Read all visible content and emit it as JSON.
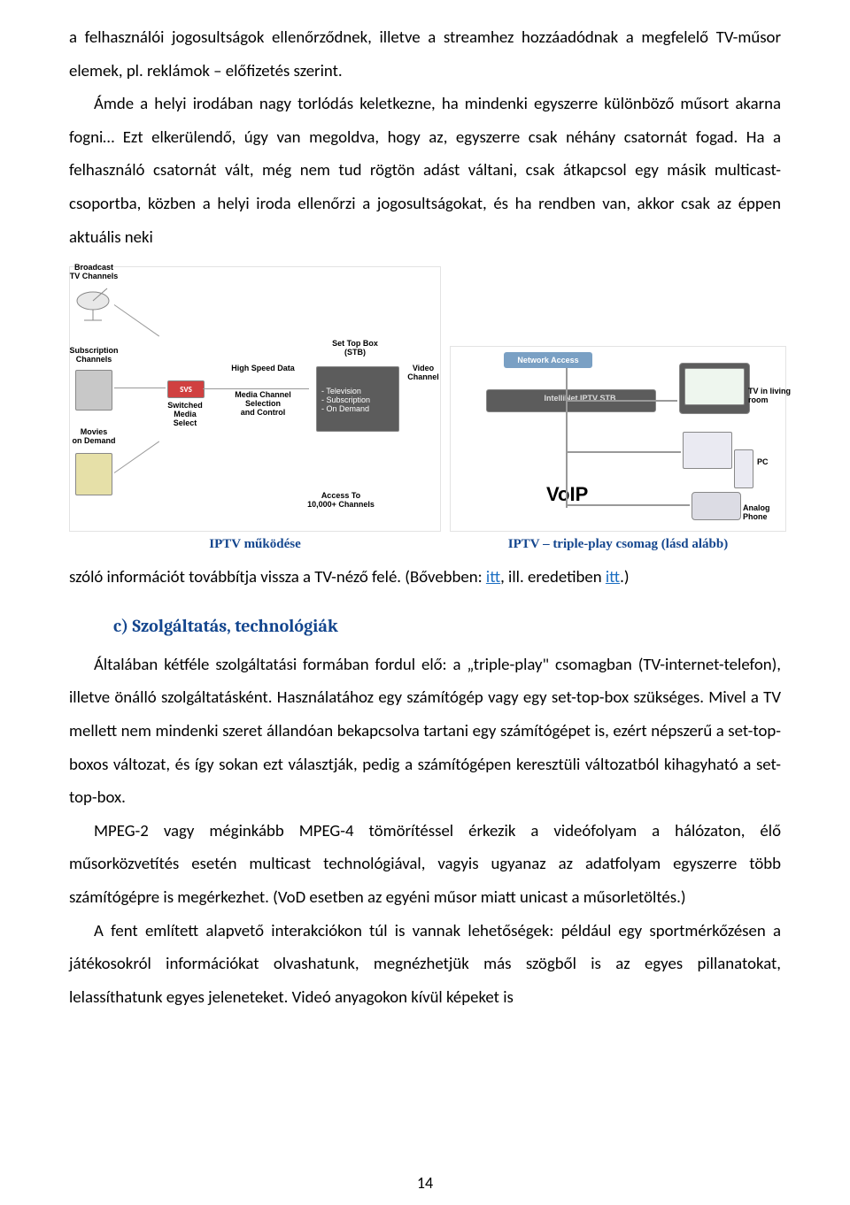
{
  "para1": "a felhasználói jogosultságok ellenőrződnek, illetve a streamhez hozzáadódnak a megfelelő TV-műsor elemek, pl. reklámok – előfizetés szerint.",
  "para2": "Ámde a helyi irodában nagy torlódás keletkezne, ha mindenki egyszerre különböző műsort akarna fogni… Ezt elkerülendő, úgy van megoldva, hogy az, egyszerre csak néhány csatornát fogad. Ha a felhasználó csatornát vált, még nem tud rögtön adást váltani, csak átkapcsol egy másik multicast-csoportba, közben a helyi iroda ellenőrzi a jogosultságokat, és ha rendben van, akkor csak az éppen aktuális neki",
  "fig_left": {
    "caption": "IPTV működése",
    "labels": {
      "broadcast": "Broadcast\nTV Channels",
      "subscription": "Subscription\nChannels",
      "movies": "Movies\non Demand",
      "highspeed": "High Speed Data",
      "mediachannel": "Media Channel\nSelection\nand Control",
      "svs": "SVS",
      "switched": "Switched\nMedia\nSelect",
      "stb": "Set Top Box\n(STB)",
      "stb_lines": "- Television\n- Subscription\n- On Demand",
      "video": "Video\nChannel",
      "access": "Access To\n10,000+ Channels"
    }
  },
  "fig_right": {
    "caption": "IPTV – triple-play csomag (lásd alább)",
    "labels": {
      "net": "Network Access",
      "stb": "IntelliNet IPTV STB",
      "tv": "TV in living room",
      "pc": "PC",
      "phone": "Analog Phone",
      "voip": "VoIP"
    }
  },
  "para3_a": "szóló információt továbbítja vissza a TV-néző felé. (Bővebben: ",
  "link_itt1": "itt",
  "para3_b": ", ill. eredetiben ",
  "link_itt2": "itt",
  "para3_c": ".)",
  "heading_c": "c)  Szolgáltatás, technológiák",
  "para4": "Általában kétféle szolgáltatási formában fordul elő: a „triple-play\" csomagban (TV-internet-telefon), illetve önálló szolgáltatásként. Használatához egy számítógép vagy egy set-top-box szükséges. Mivel a TV mellett nem mindenki szeret állandóan bekapcsolva tartani egy számítógépet is, ezért népszerű a set-top-boxos változat, és így sokan ezt választják, pedig a számítógépen keresztüli változatból kihagyható a set-top-box.",
  "para5": "MPEG-2 vagy méginkább MPEG-4 tömörítéssel érkezik a videófolyam a hálózaton, élő műsorközvetítés esetén multicast technológiával, vagyis ugyanaz az adatfolyam egyszerre több számítógépre is megérkezhet. (VoD esetben az egyéni műsor miatt unicast a műsorletöltés.)",
  "para6": "A fent említett alapvető interakciókon túl is vannak lehetőségek: például egy sportmérkőzésen a játékosokról információkat olvashatunk, megnézhetjük más szögből is az egyes pillanatokat, lelassíthatunk egyes jeleneteket. Videó anyagokon kívül képeket is",
  "page_number": "14",
  "colors": {
    "link": "#1b6ec2",
    "heading": "#14468e",
    "body": "#000000"
  }
}
